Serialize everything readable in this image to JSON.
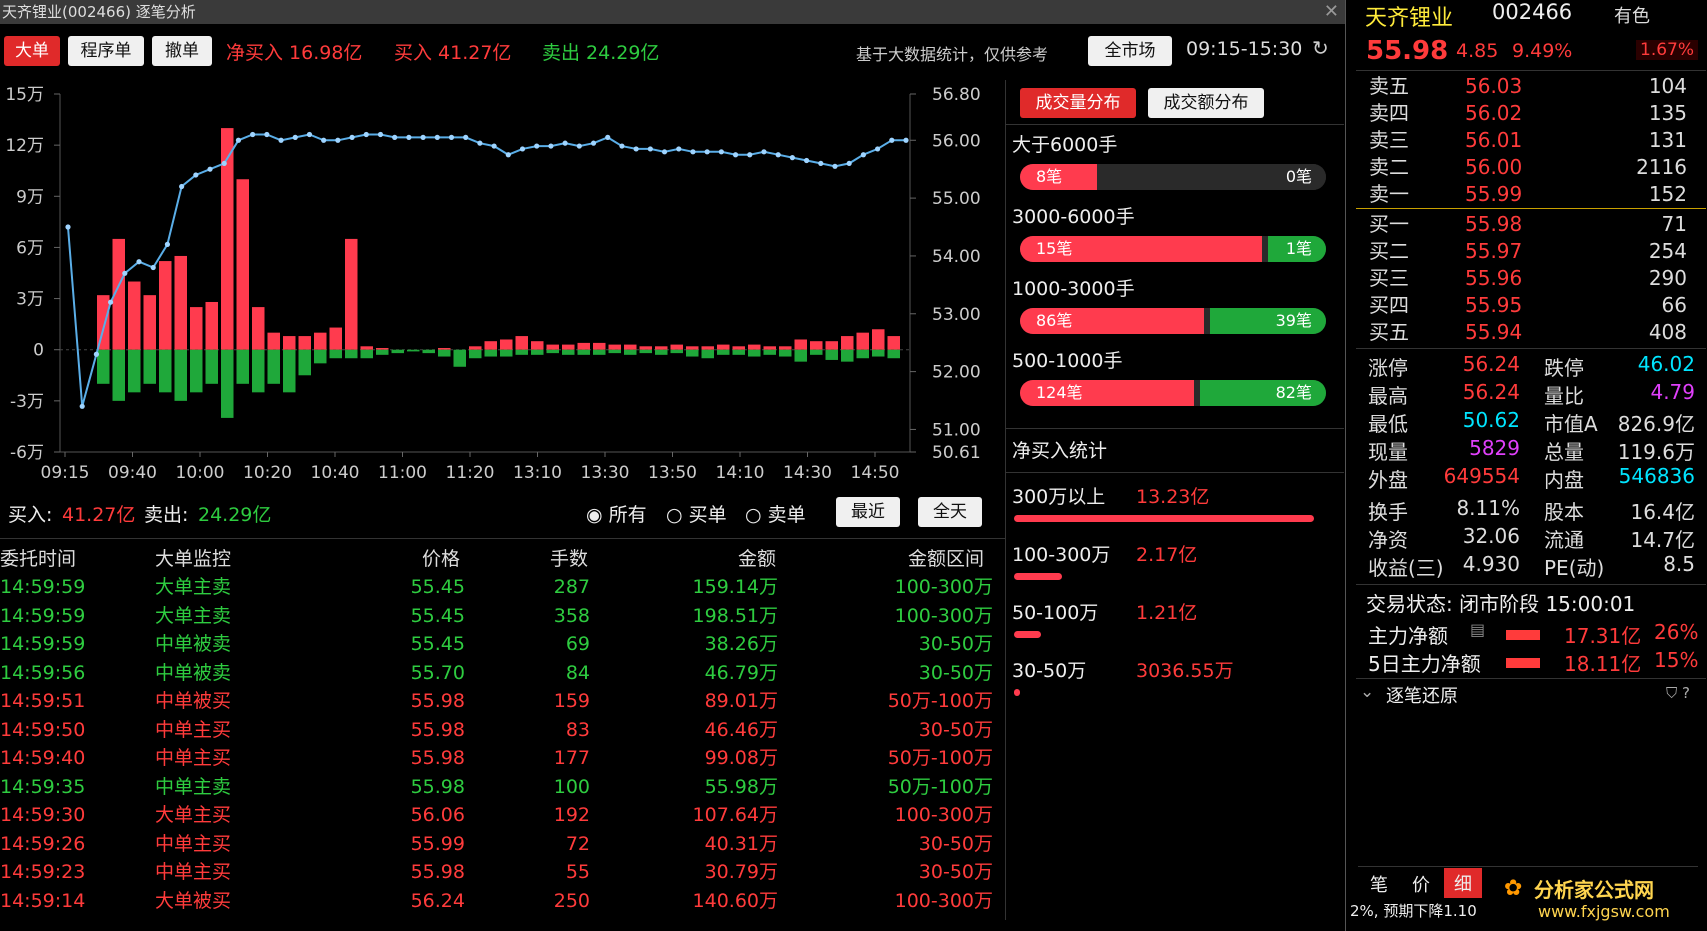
{
  "title": "天齐锂业(002466) 逐笔分析",
  "toolbar": {
    "btn_big": "大单",
    "btn_program": "程序单",
    "btn_cancel": "撤单",
    "net_buy": "净买入 16.98亿",
    "buy": "买入 41.27亿",
    "sell": "卖出 24.29亿",
    "note": "基于大数据统计，仅供参考",
    "market_btn": "全市场",
    "time_range": "09:15-15:30"
  },
  "chart_data": {
    "type": "bar+line",
    "x_ticks": [
      "09:15",
      "09:40",
      "10:00",
      "10:20",
      "10:40",
      "11:00",
      "11:20",
      "13:10",
      "13:30",
      "13:50",
      "14:10",
      "14:30",
      "14:50"
    ],
    "y_left_ticks": [
      "15万",
      "12万",
      "9万",
      "6万",
      "3万",
      "0",
      "-3万",
      "-6万"
    ],
    "y_left_range": [
      -60000,
      150000
    ],
    "y_right_ticks": [
      "56.80",
      "56.00",
      "55.00",
      "54.00",
      "53.00",
      "52.00",
      "51.00",
      "50.61"
    ],
    "y_right_range": [
      50.61,
      56.8
    ],
    "buy_bars": [
      32000,
      65000,
      40000,
      32000,
      52000,
      55000,
      25000,
      28000,
      130000,
      100000,
      25000,
      10000,
      8000,
      8000,
      10000,
      13000,
      65000,
      2000,
      1000,
      0,
      0,
      0,
      1000,
      0,
      2000,
      5000,
      6000,
      8000,
      5000,
      3000,
      3000,
      4000,
      4000,
      3000,
      3000,
      2000,
      2000,
      3000,
      2000,
      2000,
      3000,
      2000,
      3000,
      2000,
      2000,
      6000,
      5000,
      5000,
      8000,
      10000,
      12000,
      8000
    ],
    "sell_bars": [
      -20000,
      -30000,
      -25000,
      -20000,
      -25000,
      -30000,
      -25000,
      -20000,
      -40000,
      -20000,
      -25000,
      -20000,
      -25000,
      -15000,
      -8000,
      -5000,
      -5000,
      -5000,
      -3000,
      -2000,
      -1000,
      -2000,
      -4000,
      -10000,
      -5000,
      -4000,
      -4000,
      -3000,
      -3000,
      -2000,
      -3000,
      -3000,
      -3000,
      -2000,
      -3000,
      -2000,
      -3000,
      -2000,
      -4000,
      -5000,
      -3000,
      -3000,
      -4000,
      -3000,
      -4000,
      -7000,
      -3000,
      -6000,
      -7000,
      -5000,
      -4000,
      -5000
    ],
    "price_line": [
      54.5,
      51.4,
      52.3,
      53.2,
      53.7,
      53.9,
      53.8,
      54.2,
      55.2,
      55.4,
      55.5,
      55.6,
      56.0,
      56.1,
      56.1,
      56.0,
      56.05,
      56.1,
      56.0,
      56.0,
      56.05,
      56.1,
      56.1,
      56.05,
      56.05,
      56.05,
      56.05,
      56.05,
      56.05,
      55.95,
      55.9,
      55.75,
      55.85,
      55.9,
      55.9,
      55.95,
      55.9,
      55.95,
      56.05,
      55.9,
      55.85,
      55.85,
      55.8,
      55.85,
      55.8,
      55.8,
      55.8,
      55.75,
      55.75,
      55.8,
      55.75,
      55.7,
      55.65,
      55.6,
      55.55,
      55.6,
      55.75,
      55.85,
      56.0,
      56.0
    ]
  },
  "bottom": {
    "buy_label": "买入:",
    "buy_val": "41.27亿",
    "sell_label": "卖出:",
    "sell_val": "24.29亿",
    "radio_all": "所有",
    "radio_buy": "买单",
    "radio_sell": "卖单",
    "recent": "最近",
    "allday": "全天"
  },
  "table": {
    "headers": [
      "委托时间",
      "大单监控",
      "价格",
      "手数",
      "金额",
      "金额区间"
    ],
    "rows": [
      {
        "time": "14:59:59",
        "type": "大单主卖",
        "price": "55.45",
        "qty": "287",
        "amt": "159.14万",
        "range": "100-300万",
        "dir": "sell"
      },
      {
        "time": "14:59:59",
        "type": "大单主卖",
        "price": "55.45",
        "qty": "358",
        "amt": "198.51万",
        "range": "100-300万",
        "dir": "sell"
      },
      {
        "time": "14:59:59",
        "type": "中单被卖",
        "price": "55.45",
        "qty": "69",
        "amt": "38.26万",
        "range": "30-50万",
        "dir": "sell"
      },
      {
        "time": "14:59:56",
        "type": "中单被卖",
        "price": "55.70",
        "qty": "84",
        "amt": "46.79万",
        "range": "30-50万",
        "dir": "sell"
      },
      {
        "time": "14:59:51",
        "type": "中单被买",
        "price": "55.98",
        "qty": "159",
        "amt": "89.01万",
        "range": "50万-100万",
        "dir": "buy"
      },
      {
        "time": "14:59:50",
        "type": "中单主买",
        "price": "55.98",
        "qty": "83",
        "amt": "46.46万",
        "range": "30-50万",
        "dir": "buy"
      },
      {
        "time": "14:59:40",
        "type": "中单主买",
        "price": "55.98",
        "qty": "177",
        "amt": "99.08万",
        "range": "50万-100万",
        "dir": "buy"
      },
      {
        "time": "14:59:35",
        "type": "中单主卖",
        "price": "55.98",
        "qty": "100",
        "amt": "55.98万",
        "range": "50万-100万",
        "dir": "sell"
      },
      {
        "time": "14:59:30",
        "type": "大单主买",
        "price": "56.06",
        "qty": "192",
        "amt": "107.64万",
        "range": "100-300万",
        "dir": "buy"
      },
      {
        "time": "14:59:26",
        "type": "中单主买",
        "price": "55.99",
        "qty": "72",
        "amt": "40.31万",
        "range": "30-50万",
        "dir": "buy"
      },
      {
        "time": "14:59:23",
        "type": "中单主买",
        "price": "55.98",
        "qty": "55",
        "amt": "30.79万",
        "range": "30-50万",
        "dir": "buy"
      },
      {
        "time": "14:59:14",
        "type": "大单被买",
        "price": "56.24",
        "qty": "250",
        "amt": "140.60万",
        "range": "100-300万",
        "dir": "buy"
      }
    ]
  },
  "dist": {
    "tab_vol": "成交量分布",
    "tab_amt": "成交额分布",
    "groups": [
      {
        "label": "大于6000手",
        "buy": "8笔",
        "sell": "0笔",
        "buy_frac": 0.25
      },
      {
        "label": "3000-6000手",
        "buy": "15笔",
        "sell": "1笔",
        "buy_frac": 0.79
      },
      {
        "label": "1000-3000手",
        "buy": "86笔",
        "sell": "39笔",
        "buy_frac": 0.6
      },
      {
        "label": "500-1000手",
        "buy": "124笔",
        "sell": "82笔",
        "buy_frac": 0.57
      }
    ],
    "net_title": "净买入统计",
    "net": [
      {
        "label": "300万以上",
        "val": "13.23亿",
        "frac": 1.0
      },
      {
        "label": "100-300万",
        "val": "2.17亿",
        "frac": 0.16
      },
      {
        "label": "50-100万",
        "val": "1.21亿",
        "frac": 0.09
      },
      {
        "label": "30-50万",
        "val": "3036.55万",
        "frac": 0.02
      }
    ]
  },
  "quote": {
    "name": "天齐锂业",
    "code": "002466",
    "tag": "有色",
    "price": "55.98",
    "change": "4.85",
    "pct": "9.49%",
    "ratio": "1.67%",
    "asks": [
      {
        "label": "卖五",
        "price": "56.03",
        "vol": "104"
      },
      {
        "label": "卖四",
        "price": "56.02",
        "vol": "135"
      },
      {
        "label": "卖三",
        "price": "56.01",
        "vol": "131"
      },
      {
        "label": "卖二",
        "price": "56.00",
        "vol": "2116"
      },
      {
        "label": "卖一",
        "price": "55.99",
        "vol": "152"
      }
    ],
    "bids": [
      {
        "label": "买一",
        "price": "55.98",
        "vol": "71"
      },
      {
        "label": "买二",
        "price": "55.97",
        "vol": "254"
      },
      {
        "label": "买三",
        "price": "55.96",
        "vol": "290"
      },
      {
        "label": "买四",
        "price": "55.95",
        "vol": "66"
      },
      {
        "label": "买五",
        "price": "55.94",
        "vol": "408"
      }
    ],
    "stats": {
      "zt_label": "涨停",
      "zt": "56.24",
      "dt_label": "跌停",
      "dt": "46.02",
      "high_label": "最高",
      "high": "56.24",
      "lb_label": "量比",
      "lb": "4.79",
      "low_label": "最低",
      "low": "50.62",
      "mv_label": "市值A",
      "mv": "826.9亿",
      "xl_label": "现量",
      "xl": "5829",
      "zl_label": "总量",
      "zl": "119.6万",
      "wp_label": "外盘",
      "wp": "649554",
      "np_label": "内盘",
      "np": "546836",
      "hs_label": "换手",
      "hs": "8.11%",
      "gb_label": "股本",
      "gb": "16.4亿",
      "jz_label": "净资",
      "jz": "32.06",
      "lt_label": "流通",
      "lt": "14.7亿",
      "sy_label": "收益(三)",
      "sy": "4.930",
      "pe_label": "PE(动)",
      "pe": "8.5"
    },
    "trade_state": "交易状态: 闭市阶段 15:00:01",
    "main_net_label": "主力净额",
    "main_net": "17.31亿",
    "main_net_pct": "26%",
    "main5_label": "5日主力净额",
    "main5": "18.11亿",
    "main5_pct": "15%",
    "tick_restore": "逐笔还原",
    "bottom_tabs": [
      "笔",
      "价",
      "细"
    ],
    "ticker_text": "2%, 预期下降1.10",
    "watermark": "分析家公式网",
    "watermark_url": "www.fxjgsw.com"
  }
}
